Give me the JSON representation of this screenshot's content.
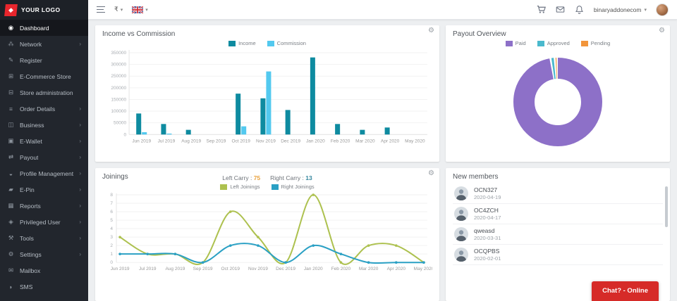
{
  "sidebar": {
    "logo_text": "YOUR LOGO",
    "items": [
      {
        "label": "Dashboard",
        "icon": "dashboard",
        "active": true,
        "chevron": false
      },
      {
        "label": "Network",
        "icon": "network",
        "active": false,
        "chevron": true
      },
      {
        "label": "Register",
        "icon": "register",
        "active": false,
        "chevron": false
      },
      {
        "label": "E-Commerce Store",
        "icon": "store",
        "active": false,
        "chevron": false
      },
      {
        "label": "Store administration",
        "icon": "store-admin",
        "active": false,
        "chevron": false
      },
      {
        "label": "Order Details",
        "icon": "orders",
        "active": false,
        "chevron": true
      },
      {
        "label": "Business",
        "icon": "business",
        "active": false,
        "chevron": true
      },
      {
        "label": "E-Wallet",
        "icon": "wallet",
        "active": false,
        "chevron": true
      },
      {
        "label": "Payout",
        "icon": "payout",
        "active": false,
        "chevron": true
      },
      {
        "label": "Profile Management",
        "icon": "profile",
        "active": false,
        "chevron": true
      },
      {
        "label": "E-Pin",
        "icon": "epin",
        "active": false,
        "chevron": true
      },
      {
        "label": "Reports",
        "icon": "reports",
        "active": false,
        "chevron": true
      },
      {
        "label": "Privileged User",
        "icon": "privileged",
        "active": false,
        "chevron": true
      },
      {
        "label": "Tools",
        "icon": "tools",
        "active": false,
        "chevron": true
      },
      {
        "label": "Settings",
        "icon": "settings",
        "active": false,
        "chevron": true
      },
      {
        "label": "Mailbox",
        "icon": "mailbox",
        "active": false,
        "chevron": false
      },
      {
        "label": "SMS",
        "icon": "sms",
        "active": false,
        "chevron": false
      }
    ]
  },
  "topbar": {
    "currency": "₹",
    "username": "binaryaddonecom"
  },
  "cards": {
    "income": {
      "title": "Income vs Commission"
    },
    "payout": {
      "title": "Payout Overview"
    },
    "joinings": {
      "title": "Joinings",
      "left_carry_label": "Left Carry :",
      "left_carry_value": "75",
      "left_carry_color": "#e9a13b",
      "right_carry_label": "Right Carry :",
      "right_carry_value": "13",
      "right_carry_color": "#35879e"
    },
    "members": {
      "title": "New members",
      "items": [
        {
          "name": "OCN327",
          "date": "2020-04-19"
        },
        {
          "name": "OC4ZCH",
          "date": "2020-04-17"
        },
        {
          "name": "qweasd",
          "date": "2020-03-31"
        },
        {
          "name": "OCQPBS",
          "date": "2020-02-01"
        }
      ]
    }
  },
  "chat_button": {
    "label": "Chat? - Online",
    "color": "#d62b28"
  },
  "icons": {
    "caret_down": "▾",
    "gear": "⚙",
    "chevron_right": "›",
    "logo": "◆",
    "sidebar_glyphs": {
      "dashboard": "◉",
      "network": "⁂",
      "register": "✎",
      "store": "⊞",
      "store-admin": "⊟",
      "orders": "≡",
      "business": "◫",
      "wallet": "▣",
      "payout": "⇄",
      "profile": "◒",
      "epin": "▰",
      "reports": "▦",
      "privileged": "◈",
      "tools": "⚒",
      "settings": "⚙",
      "mailbox": "✉",
      "sms": "◗"
    }
  },
  "chart_data": [
    {
      "type": "bar",
      "title": "Income vs Commission",
      "categories": [
        "Jun 2019",
        "Jul 2019",
        "Aug 2019",
        "Sep 2019",
        "Oct 2019",
        "Nov 2019",
        "Dec 2019",
        "Jan 2020",
        "Feb 2020",
        "Mar 2020",
        "Apr 2020",
        "May 2020"
      ],
      "series": [
        {
          "name": "Income",
          "color": "#0e8ba0",
          "values": [
            90000,
            45000,
            20000,
            0,
            175000,
            155000,
            105000,
            330000,
            45000,
            20000,
            30000,
            0
          ]
        },
        {
          "name": "Commission",
          "color": "#53c9ef",
          "values": [
            10000,
            4000,
            0,
            0,
            35000,
            270000,
            0,
            0,
            0,
            0,
            0,
            0
          ]
        }
      ],
      "ylim": [
        0,
        350000
      ],
      "yticks": [
        0,
        50000,
        100000,
        150000,
        200000,
        250000,
        300000,
        350000
      ],
      "legend_position": "top",
      "grid": true
    },
    {
      "type": "pie",
      "title": "Payout Overview",
      "labels": [
        "Paid",
        "Approved",
        "Pending"
      ],
      "values": [
        97.5,
        1.5,
        1.0
      ],
      "colors": [
        "#8d70c8",
        "#4ab9cd",
        "#f2953b"
      ],
      "donut": true,
      "legend_position": "top"
    },
    {
      "type": "line",
      "title": "Joinings",
      "categories": [
        "Jun 2019",
        "Jul 2019",
        "Aug 2019",
        "Sep 2019",
        "Oct 2019",
        "Nov 2019",
        "Dec 2019",
        "Jan 2020",
        "Feb 2020",
        "Mar 2020",
        "Apr 2020",
        "May 2020"
      ],
      "series": [
        {
          "name": "Left Joinings",
          "color": "#adc14f",
          "values": [
            3,
            1,
            1,
            0,
            6,
            3,
            0,
            8,
            0,
            2,
            2,
            0
          ]
        },
        {
          "name": "Right Joinings",
          "color": "#2aa0c4",
          "values": [
            1,
            1,
            1,
            0,
            2,
            2,
            0,
            2,
            1,
            0,
            0,
            0
          ]
        }
      ],
      "ylim": [
        0,
        8
      ],
      "yticks": [
        0,
        1,
        2,
        3,
        4,
        5,
        6,
        7,
        8
      ],
      "legend_position": "top",
      "grid": true
    }
  ]
}
